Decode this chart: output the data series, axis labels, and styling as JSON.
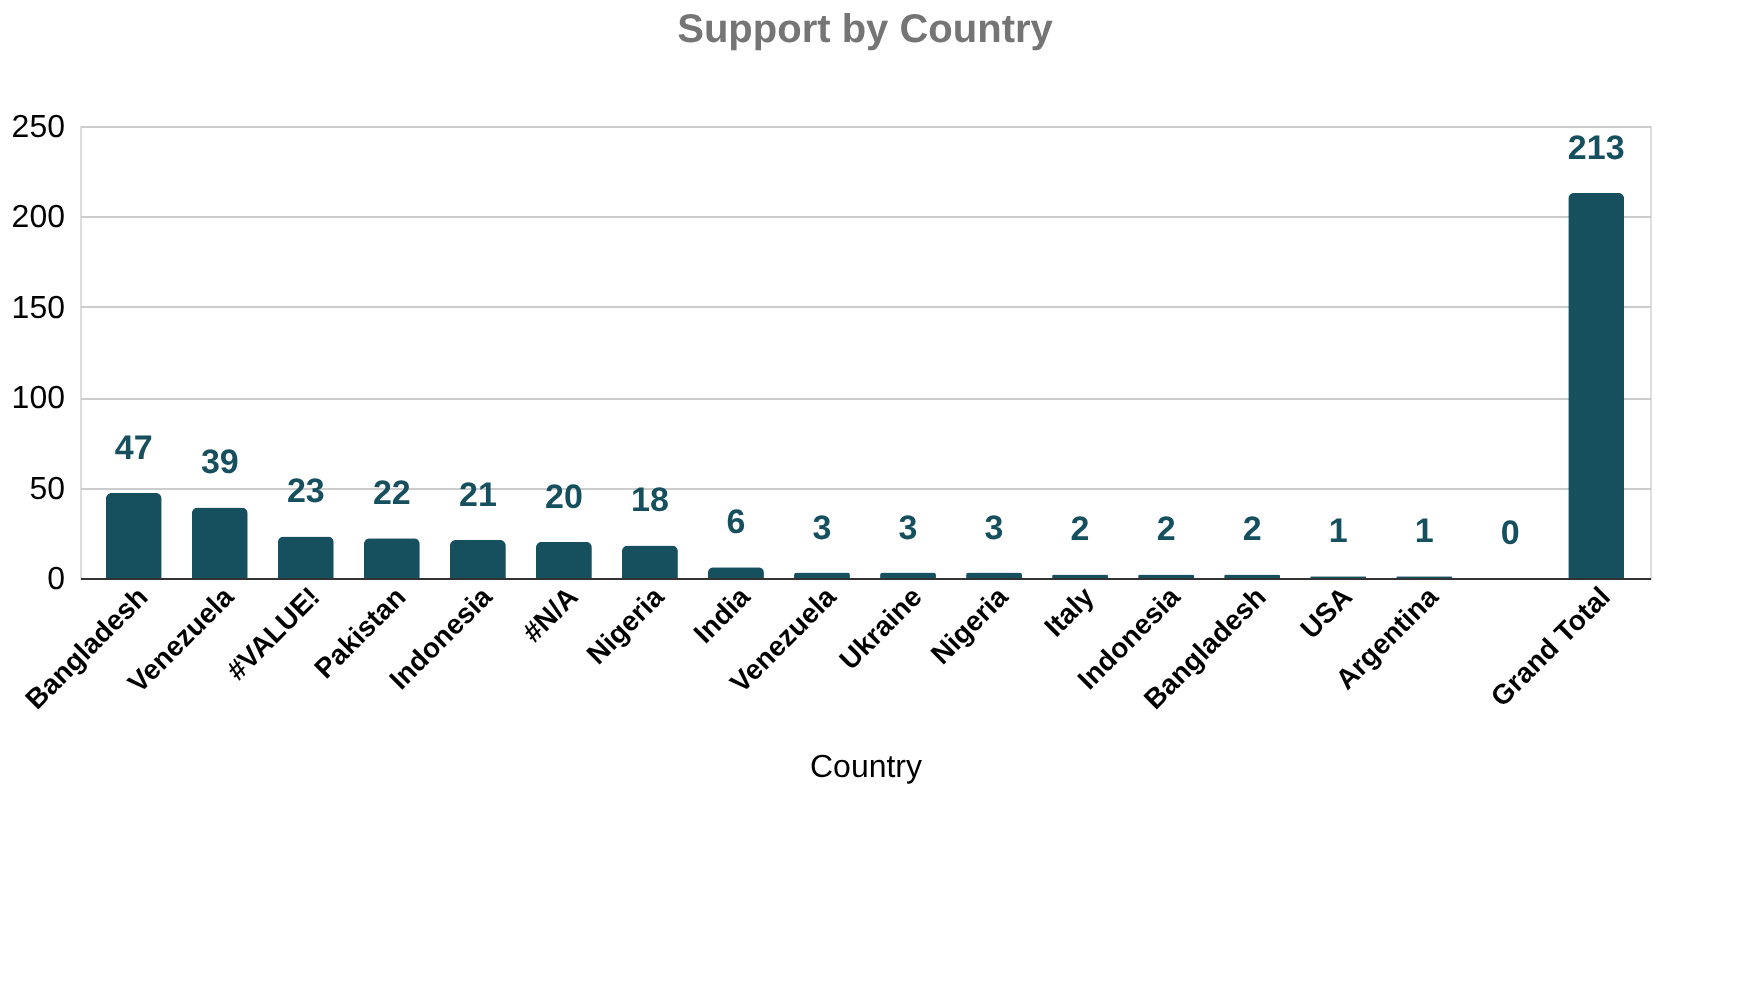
{
  "chart_data": {
    "type": "bar",
    "title": "Support by Country",
    "xlabel": "Country",
    "categories": [
      "Bangladesh",
      "Venezuela",
      "#VALUE!",
      "Pakistan",
      "Indonesia",
      "#N/A",
      "Nigeria",
      "India",
      "Venezuela",
      "Ukraine",
      "Nigeria",
      "Italy",
      "Indonesia",
      "Bangladesh",
      "USA",
      "Argentina",
      null,
      "Grand Total"
    ],
    "values": [
      47,
      39,
      23,
      22,
      21,
      20,
      18,
      6,
      3,
      3,
      3,
      2,
      2,
      2,
      1,
      1,
      0,
      213
    ],
    "color": "#164f5e",
    "ylim": [
      0,
      250
    ],
    "yticks": [
      0,
      50,
      100,
      150,
      200,
      250
    ],
    "grid": "y",
    "data_labels": true
  }
}
